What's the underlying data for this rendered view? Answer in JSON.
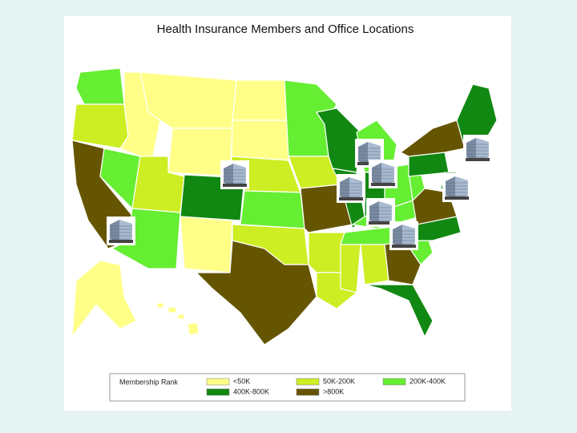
{
  "title": "Health Insurance Members and Office Locations",
  "legend": {
    "title": "Membership Rank",
    "items": [
      {
        "label": "<50K",
        "color": "#ffff88"
      },
      {
        "label": "50K-200K",
        "color": "#ccee22"
      },
      {
        "label": "200K-400K",
        "color": "#66ee33"
      },
      {
        "label": "400K-800K",
        "color": "#118811"
      },
      {
        "label": ">800K",
        "color": "#665500"
      }
    ]
  }
}
